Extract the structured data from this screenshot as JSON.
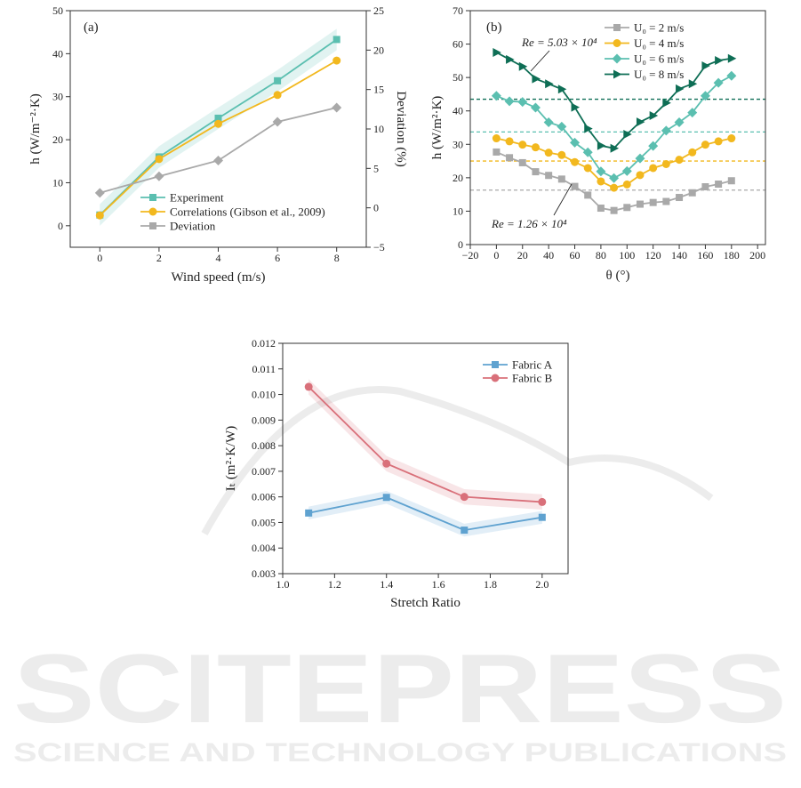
{
  "watermark": {
    "title": "SCITEPRESS",
    "subtitle": "SCIENCE AND TECHNOLOGY PUBLICATIONS"
  },
  "chart_data": [
    {
      "type": "line",
      "panel_label": "(a)",
      "xlabel": "Wind speed (m/s)",
      "ylabel": "h (W/m⁻²·K)",
      "y2label": "Deviation (%)",
      "xlim": [
        -1,
        9
      ],
      "ylim": [
        -5,
        50
      ],
      "y2lim": [
        -5,
        25
      ],
      "xticks": [
        0,
        2,
        4,
        6,
        8
      ],
      "xtick_labels": [
        "0",
        "2",
        "4",
        "6",
        "8"
      ],
      "yticks": [
        0,
        10,
        20,
        30,
        40,
        50
      ],
      "ytick_labels": [
        "0",
        "10",
        "20",
        "30",
        "40",
        "50"
      ],
      "y2ticks": [
        -5,
        0,
        5,
        10,
        15,
        20,
        25
      ],
      "y2tick_labels": [
        "−5",
        "0",
        "5",
        "10",
        "15",
        "20",
        "25"
      ],
      "legend": "bottom-right",
      "series": [
        {
          "name": "Experiment",
          "x": [
            0,
            2,
            4,
            6,
            8
          ],
          "y": [
            2.5,
            16.0,
            25.0,
            33.7,
            43.3
          ],
          "color": "#5bbfb0",
          "marker": "square",
          "axis": "left",
          "band": 2.5
        },
        {
          "name": "Correlations (Gibson et al., 2009)",
          "x": [
            0,
            2,
            4,
            6,
            8
          ],
          "y": [
            2.4,
            15.5,
            23.7,
            30.4,
            38.4
          ],
          "color": "#f2b81e",
          "marker": "circle",
          "axis": "left"
        },
        {
          "name": "Deviation",
          "x": [
            0,
            2,
            4,
            6,
            8
          ],
          "y": [
            1.9,
            4.0,
            6.0,
            10.9,
            12.7
          ],
          "color": "#a9a9a9",
          "marker": "diamond",
          "legend_marker": "square",
          "axis": "right"
        }
      ]
    },
    {
      "type": "line",
      "panel_label": "(b)",
      "xlabel": "θ (°)",
      "ylabel": "h (W/m²·K)",
      "xlim": [
        -20,
        206
      ],
      "ylim": [
        0,
        70
      ],
      "xticks": [
        -20,
        0,
        20,
        40,
        60,
        80,
        100,
        120,
        140,
        160,
        180,
        200
      ],
      "xtick_labels": [
        "−20",
        "0",
        "20",
        "40",
        "60",
        "80",
        "100",
        "120",
        "140",
        "160",
        "180",
        "200"
      ],
      "yticks": [
        0,
        10,
        20,
        30,
        40,
        50,
        60,
        70
      ],
      "ytick_labels": [
        "0",
        "10",
        "20",
        "30",
        "40",
        "50",
        "60",
        "70"
      ],
      "legend": "top-right",
      "series": [
        {
          "name": "U₀ = 2 m/s",
          "x": [
            0,
            10,
            20,
            30,
            40,
            50,
            60,
            70,
            80,
            90,
            100,
            110,
            120,
            130,
            140,
            150,
            160,
            170,
            180
          ],
          "y": [
            27.7,
            26.0,
            24.5,
            21.8,
            20.7,
            19.6,
            17.4,
            14.8,
            10.9,
            10.2,
            11.1,
            12.1,
            12.6,
            12.9,
            14.1,
            15.5,
            17.3,
            18.1,
            19.1
          ],
          "color": "#a9a9a9",
          "marker": "square"
        },
        {
          "name": "U₀ = 4 m/s",
          "x": [
            0,
            10,
            20,
            30,
            40,
            50,
            60,
            70,
            80,
            90,
            100,
            110,
            120,
            130,
            140,
            150,
            160,
            170,
            180
          ],
          "y": [
            31.8,
            30.9,
            29.9,
            29.1,
            27.5,
            26.8,
            24.7,
            22.9,
            18.9,
            17.0,
            18.0,
            20.8,
            22.9,
            24.1,
            25.4,
            27.6,
            29.9,
            30.9,
            31.8
          ],
          "color": "#f2b81e",
          "marker": "circle"
        },
        {
          "name": "U₀ = 6 m/s",
          "x": [
            0,
            10,
            20,
            30,
            40,
            50,
            60,
            70,
            80,
            90,
            100,
            110,
            120,
            130,
            140,
            150,
            160,
            170,
            180
          ],
          "y": [
            44.5,
            42.9,
            42.7,
            41.0,
            36.6,
            35.3,
            30.5,
            27.6,
            21.9,
            19.9,
            22.0,
            25.8,
            29.5,
            34.1,
            36.6,
            39.5,
            44.5,
            48.4,
            50.5
          ],
          "color": "#5bbfb0",
          "marker": "diamond"
        },
        {
          "name": "U₀ = 8 m/s",
          "x": [
            0,
            10,
            20,
            30,
            40,
            50,
            60,
            70,
            80,
            90,
            100,
            110,
            120,
            130,
            140,
            150,
            160,
            170,
            180
          ],
          "y": [
            57.5,
            55.4,
            53.3,
            49.6,
            48.1,
            46.5,
            41.1,
            34.7,
            29.6,
            28.8,
            33.0,
            36.7,
            38.6,
            42.4,
            46.6,
            48.1,
            53.5,
            55.1,
            55.7
          ],
          "color": "#0e6e55",
          "marker": "triangle-right"
        }
      ],
      "reference_lines": [
        {
          "y": 43.5,
          "color": "#0e6e55"
        },
        {
          "y": 33.7,
          "color": "#5bbfb0"
        },
        {
          "y": 25.0,
          "color": "#f2b81e"
        },
        {
          "y": 16.3,
          "color": "#a9a9a9"
        }
      ],
      "annotations": [
        {
          "text": "Re = 5.03 × 10⁴",
          "points_to": [
            30,
            50.5
          ]
        },
        {
          "text": "Re = 1.26 × 10⁴",
          "points_to": [
            57,
            18.5
          ]
        }
      ]
    },
    {
      "type": "line",
      "panel_label": "",
      "xlabel": "Stretch Ratio",
      "ylabel": "Iₜ (m²·K/W)",
      "xlim": [
        1.0,
        2.1
      ],
      "ylim": [
        0.003,
        0.012
      ],
      "xticks": [
        1.0,
        1.2,
        1.4,
        1.6,
        1.8,
        2.0
      ],
      "xtick_labels": [
        "1.0",
        "1.2",
        "1.4",
        "1.6",
        "1.8",
        "2.0"
      ],
      "yticks": [
        0.003,
        0.004,
        0.005,
        0.006,
        0.007,
        0.008,
        0.009,
        0.01,
        0.011,
        0.012
      ],
      "ytick_labels": [
        "0.003",
        "0.004",
        "0.005",
        "0.006",
        "0.007",
        "0.008",
        "0.009",
        "0.010",
        "0.011",
        "0.012"
      ],
      "legend": "top-right",
      "series": [
        {
          "name": "Fabric A",
          "x": [
            1.1,
            1.4,
            1.7,
            2.0
          ],
          "y": [
            0.00537,
            0.00598,
            0.0047,
            0.0052
          ],
          "color": "#5fa2d0",
          "marker": "square",
          "band": 0.00025
        },
        {
          "name": "Fabric B",
          "x": [
            1.1,
            1.4,
            1.7,
            2.0
          ],
          "y": [
            0.0103,
            0.0073,
            0.006,
            0.0058
          ],
          "color": "#d9707a",
          "marker": "circle",
          "band": 0.0003
        }
      ]
    }
  ]
}
